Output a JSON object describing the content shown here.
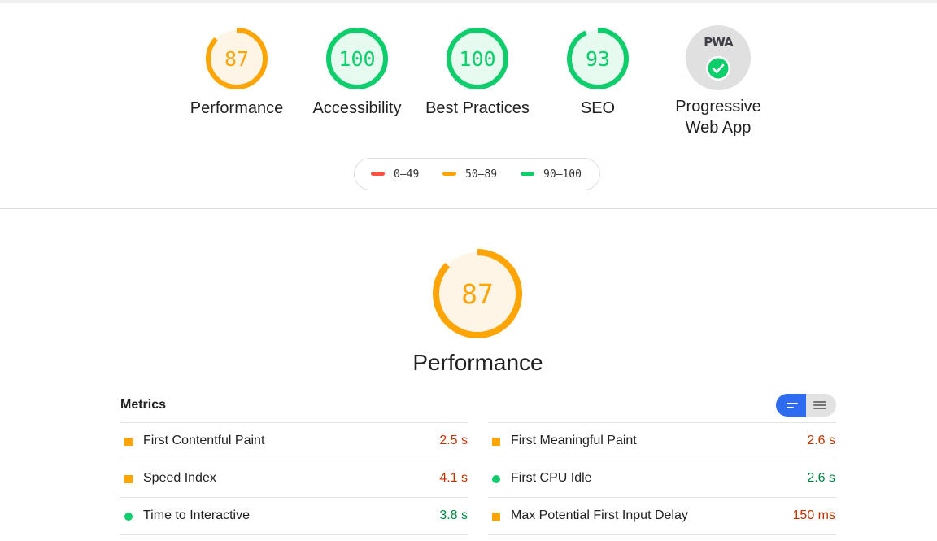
{
  "colors": {
    "fail": "#ff4e42",
    "average": "#ffa400",
    "pass": "#0cce6b",
    "average_bg": "#fff5e6",
    "pass_bg": "#e6faf0",
    "average_text": "#c33300",
    "pass_text": "#018642",
    "accent": "#2e6bf0"
  },
  "gauges": [
    {
      "label": "Performance",
      "score": "87",
      "value": 0.87,
      "rating": "average"
    },
    {
      "label": "Accessibility",
      "score": "100",
      "value": 1.0,
      "rating": "pass"
    },
    {
      "label": "Best Practices",
      "score": "100",
      "value": 1.0,
      "rating": "pass"
    },
    {
      "label": "SEO",
      "score": "93",
      "value": 0.93,
      "rating": "pass"
    }
  ],
  "pwa": {
    "badge_text": "PWA",
    "label_line1": "Progressive",
    "label_line2": "Web App",
    "icon": "check-circle-icon"
  },
  "legend": [
    {
      "range": "0–49",
      "rating": "fail"
    },
    {
      "range": "50–89",
      "rating": "average"
    },
    {
      "range": "90–100",
      "rating": "pass"
    }
  ],
  "performance": {
    "score": "87",
    "value": 0.87,
    "title": "Performance"
  },
  "metrics": {
    "title": "Metrics",
    "toggle": {
      "left_icon": "compact-view-icon",
      "right_icon": "expanded-view-icon"
    },
    "left": [
      {
        "name": "First Contentful Paint",
        "value": "2.5 s",
        "rating": "average"
      },
      {
        "name": "Speed Index",
        "value": "4.1 s",
        "rating": "average"
      },
      {
        "name": "Time to Interactive",
        "value": "3.8 s",
        "rating": "pass"
      }
    ],
    "right": [
      {
        "name": "First Meaningful Paint",
        "value": "2.6 s",
        "rating": "average"
      },
      {
        "name": "First CPU Idle",
        "value": "2.6 s",
        "rating": "pass"
      },
      {
        "name": "Max Potential First Input Delay",
        "value": "150 ms",
        "rating": "average"
      }
    ]
  }
}
